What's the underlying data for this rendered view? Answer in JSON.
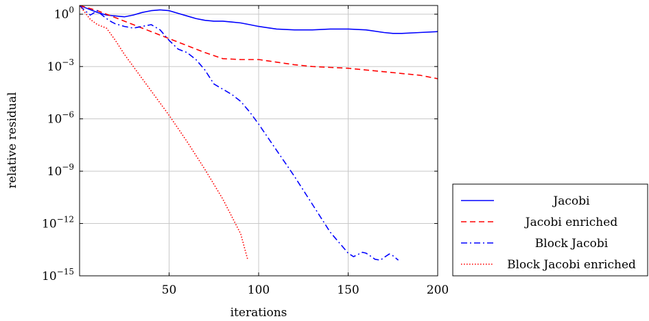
{
  "chart_data": {
    "type": "line",
    "title": "",
    "xlabel": "iterations",
    "ylabel": "relative residual",
    "xlim": [
      0,
      200
    ],
    "ylim_exponent": [
      -15,
      0.5
    ],
    "yscale": "log",
    "grid": true,
    "legend_position": "outside-right-bottom",
    "x_ticks": [
      50,
      100,
      150,
      200
    ],
    "y_ticks": [
      {
        "base": "10",
        "exp": "0"
      },
      {
        "base": "10",
        "exp": "−3"
      },
      {
        "base": "10",
        "exp": "−6"
      },
      {
        "base": "10",
        "exp": "−9"
      },
      {
        "base": "10",
        "exp": "−12"
      },
      {
        "base": "10",
        "exp": "−15"
      }
    ],
    "y_tick_values": [
      0,
      -3,
      -6,
      -9,
      -12,
      -15
    ],
    "series": [
      {
        "name": "Jacobi",
        "color": "#0000ff",
        "dash": "solid",
        "x": [
          0,
          5,
          10,
          15,
          20,
          25,
          30,
          35,
          40,
          45,
          50,
          55,
          60,
          65,
          70,
          75,
          80,
          85,
          90,
          95,
          100,
          110,
          120,
          130,
          140,
          150,
          160,
          170,
          175,
          180,
          190,
          200
        ],
        "log10_y": [
          0.5,
          0.3,
          0.1,
          -0.05,
          -0.1,
          -0.15,
          -0.05,
          0.1,
          0.2,
          0.25,
          0.2,
          0.05,
          -0.1,
          -0.25,
          -0.35,
          -0.4,
          -0.4,
          -0.45,
          -0.5,
          -0.6,
          -0.7,
          -0.85,
          -0.9,
          -0.9,
          -0.85,
          -0.85,
          -0.9,
          -1.05,
          -1.1,
          -1.1,
          -1.05,
          -1.0
        ]
      },
      {
        "name": "Jacobi enriched",
        "color": "#ff0000",
        "dash": "dashed",
        "x": [
          0,
          10,
          20,
          30,
          40,
          50,
          60,
          70,
          80,
          90,
          100,
          110,
          120,
          130,
          140,
          150,
          160,
          170,
          180,
          190,
          200
        ],
        "log10_y": [
          0.5,
          0.2,
          -0.2,
          -0.6,
          -1.0,
          -1.4,
          -1.8,
          -2.2,
          -2.55,
          -2.6,
          -2.6,
          -2.75,
          -2.9,
          -3.0,
          -3.05,
          -3.1,
          -3.2,
          -3.3,
          -3.4,
          -3.5,
          -3.7
        ]
      },
      {
        "name": "Block Jacobi",
        "color": "#0000ff",
        "dash": "dashdot",
        "x": [
          0,
          3,
          6,
          10,
          12,
          15,
          18,
          20,
          25,
          30,
          35,
          40,
          45,
          50,
          55,
          60,
          65,
          70,
          75,
          80,
          85,
          90,
          95,
          100,
          110,
          120,
          130,
          140,
          150,
          153,
          155,
          158,
          160,
          163,
          165,
          168,
          170,
          173,
          175,
          178
        ],
        "log10_y": [
          0.5,
          0.2,
          -0.05,
          0.2,
          0.0,
          -0.25,
          -0.45,
          -0.55,
          -0.7,
          -0.8,
          -0.7,
          -0.6,
          -0.9,
          -1.5,
          -2.0,
          -2.2,
          -2.6,
          -3.2,
          -4.0,
          -4.3,
          -4.6,
          -5.0,
          -5.6,
          -6.3,
          -7.8,
          -9.3,
          -10.9,
          -12.5,
          -13.7,
          -13.9,
          -13.8,
          -13.65,
          -13.7,
          -13.9,
          -14.05,
          -14.1,
          -13.95,
          -13.75,
          -13.85,
          -14.1
        ]
      },
      {
        "name": "Block Jacobi enriched",
        "color": "#ff0000",
        "dash": "dotted",
        "x": [
          0,
          3,
          6,
          10,
          15,
          20,
          25,
          30,
          40,
          50,
          60,
          70,
          80,
          90,
          94
        ],
        "log10_y": [
          0.5,
          0.1,
          -0.3,
          -0.6,
          -0.8,
          -1.5,
          -2.3,
          -3.0,
          -4.4,
          -5.8,
          -7.3,
          -8.9,
          -10.6,
          -12.6,
          -14.1
        ]
      }
    ]
  }
}
